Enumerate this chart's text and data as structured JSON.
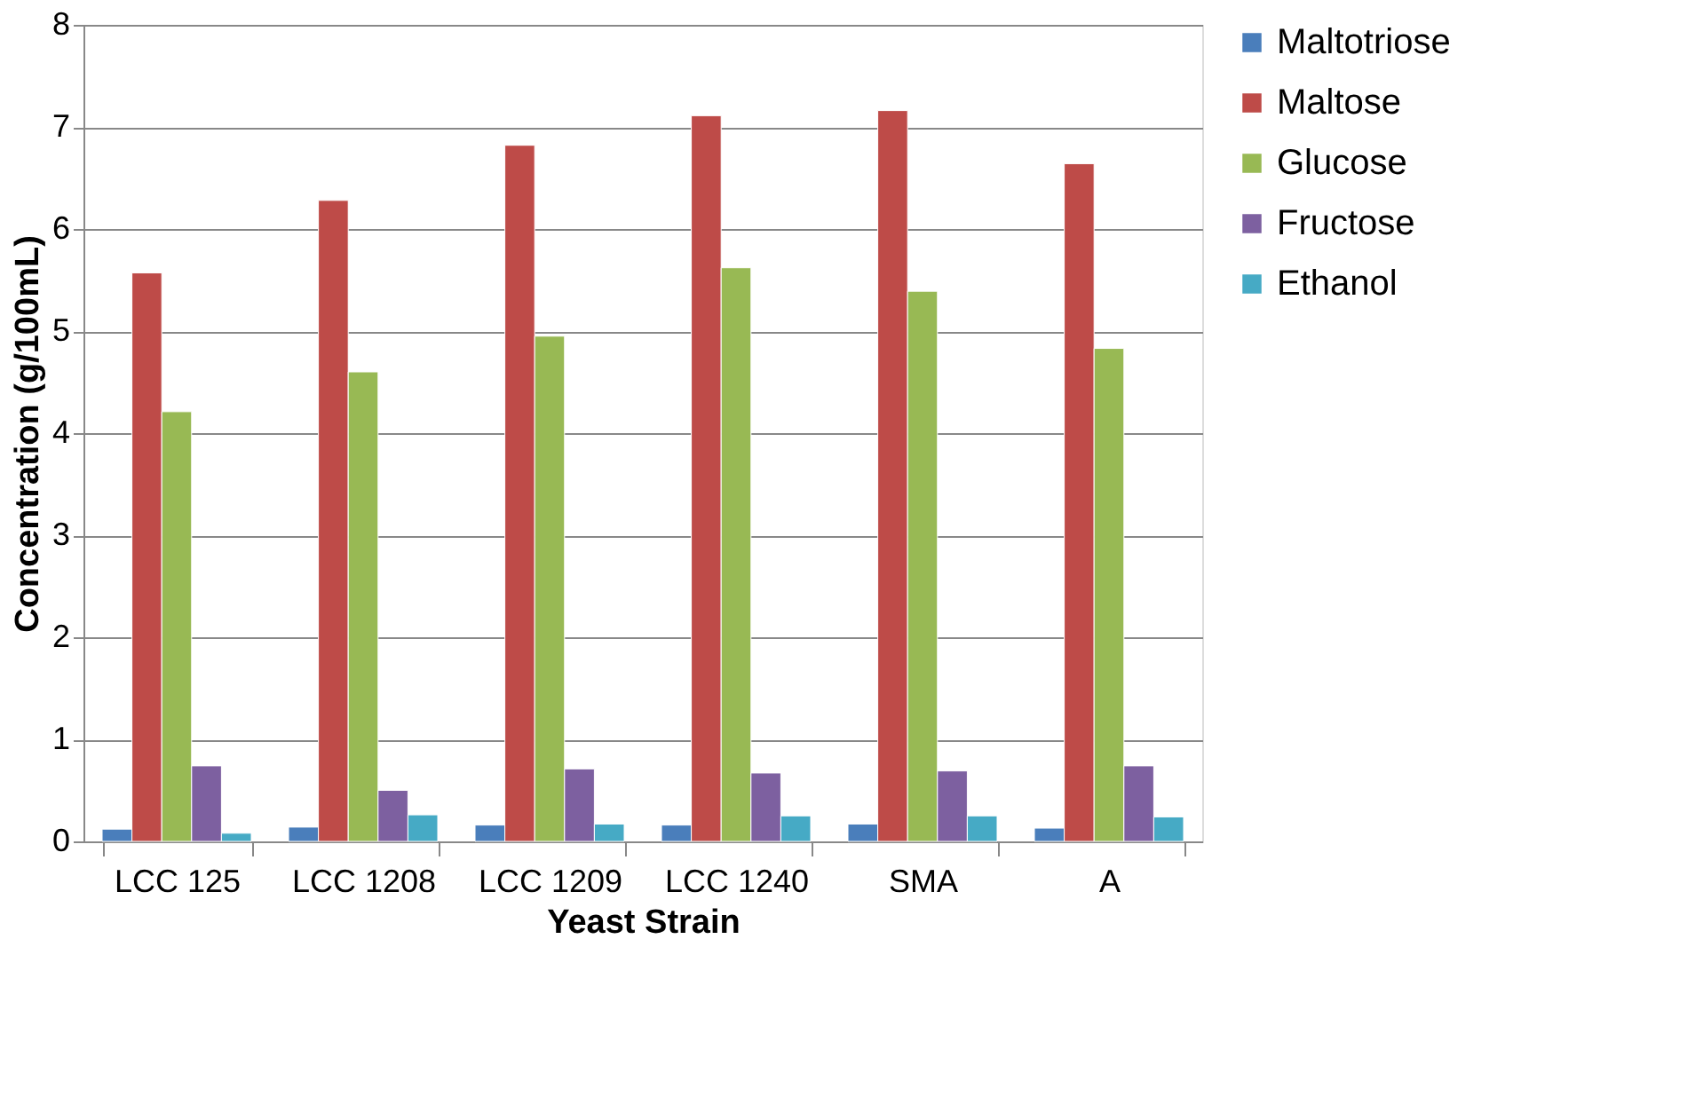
{
  "chart_data": {
    "type": "bar",
    "xlabel": "Yeast Strain",
    "ylabel": "Concentration (g/100mL)",
    "categories": [
      "LCC 125",
      "LCC 1208",
      "LCC 1209",
      "LCC 1240",
      "SMA",
      "A"
    ],
    "series": [
      {
        "name": "Maltotriose",
        "color": "#4a7ebb",
        "values": [
          0.12,
          0.14,
          0.16,
          0.16,
          0.17,
          0.13
        ]
      },
      {
        "name": "Maltose",
        "color": "#be4b48",
        "values": [
          5.57,
          6.28,
          6.82,
          7.11,
          7.16,
          6.64
        ]
      },
      {
        "name": "Glucose",
        "color": "#98b954",
        "values": [
          4.21,
          4.6,
          4.95,
          5.62,
          5.39,
          4.83
        ]
      },
      {
        "name": "Fructose",
        "color": "#7d60a0",
        "values": [
          0.74,
          0.5,
          0.71,
          0.67,
          0.69,
          0.74
        ]
      },
      {
        "name": "Ethanol",
        "color": "#46aac5",
        "values": [
          0.08,
          0.26,
          0.17,
          0.25,
          0.25,
          0.24
        ]
      }
    ],
    "ylim": [
      0,
      8
    ],
    "yticks": [
      0,
      1,
      2,
      3,
      4,
      5,
      6,
      7,
      8
    ],
    "grid": "y",
    "legend": "right"
  }
}
